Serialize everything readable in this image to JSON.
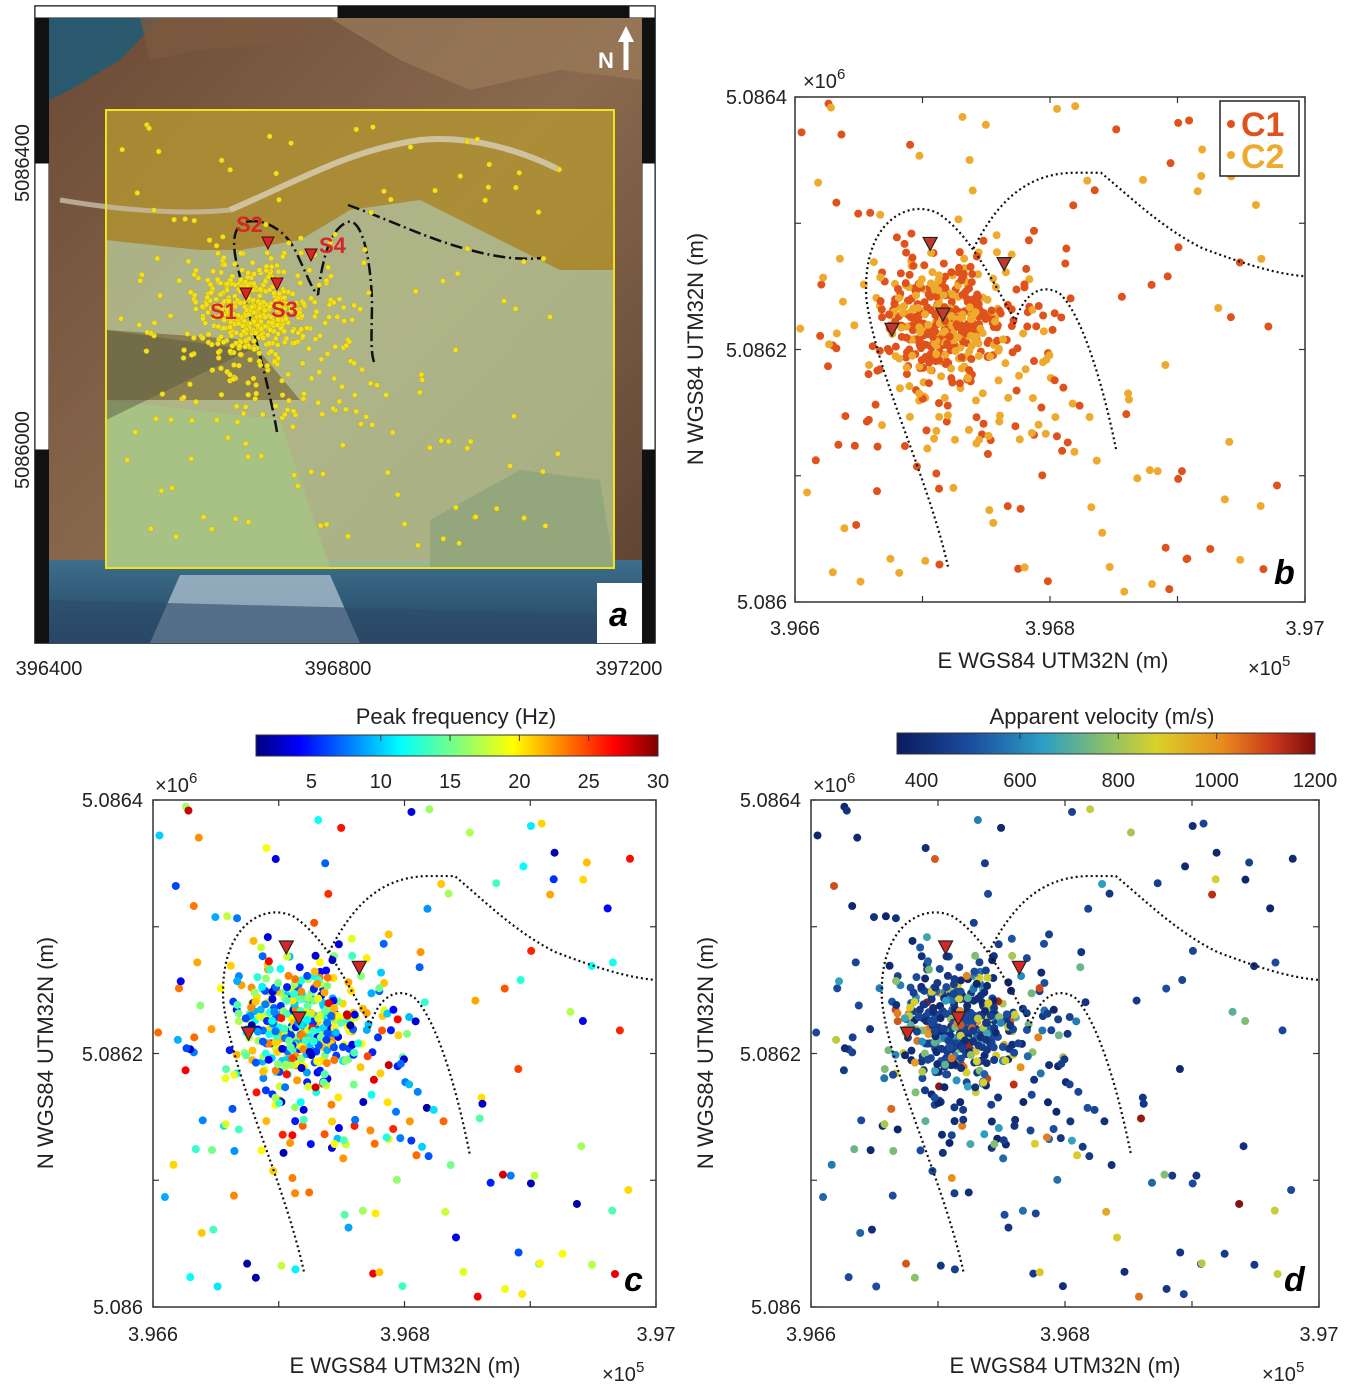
{
  "panel_a": {
    "letter": "a",
    "north_label": "N",
    "x_ticks": [
      "396400",
      "396800",
      "397200"
    ],
    "y_ticks": [
      "5086400",
      "5086000"
    ],
    "stations": [
      "S1",
      "S2",
      "S3",
      "S4"
    ],
    "colors": {
      "points": "#f5e11a",
      "stations": "#d62728",
      "study_box": "#f2e21b"
    }
  },
  "panel_b": {
    "letter": "b",
    "y_exponent": "×10",
    "y_exponent_power": "6",
    "x_exponent": "×10",
    "x_exponent_power": "5",
    "x_ticks": [
      "3.966",
      "3.968",
      "3.97"
    ],
    "y_ticks": [
      "5.0864",
      "5.0862",
      "5.086"
    ],
    "xlabel": "E WGS84 UTM32N (m)",
    "ylabel": "N WGS84 UTM32N (m)",
    "legend": [
      {
        "label": "C1",
        "color": "#e0521c"
      },
      {
        "label": "C2",
        "color": "#eeaa2c"
      }
    ]
  },
  "panel_c": {
    "letter": "c",
    "colorbar_title": "Peak frequency (Hz)",
    "colorbar_ticks": [
      "5",
      "10",
      "15",
      "20",
      "25",
      "30"
    ],
    "y_exponent": "×10",
    "y_exponent_power": "6",
    "x_exponent": "×10",
    "x_exponent_power": "5",
    "x_ticks": [
      "3.966",
      "3.968",
      "3.97"
    ],
    "y_ticks": [
      "5.0864",
      "5.0862",
      "5.086"
    ],
    "xlabel": "E WGS84 UTM32N (m)",
    "ylabel": "N WGS84 UTM32N (m)"
  },
  "panel_d": {
    "letter": "d",
    "colorbar_title": "Apparent velocity (m/s)",
    "colorbar_ticks": [
      "400",
      "600",
      "800",
      "1000",
      "1200"
    ],
    "y_exponent": "×10",
    "y_exponent_power": "6",
    "x_exponent": "×10",
    "x_exponent_power": "5",
    "x_ticks": [
      "3.966",
      "3.968",
      "3.97"
    ],
    "y_ticks": [
      "5.0864",
      "5.0862",
      "5.086"
    ],
    "xlabel": "E WGS84 UTM32N (m)",
    "ylabel": "N WGS84 UTM32N (m)"
  },
  "chart_data": [
    {
      "type": "scatter",
      "panel": "b",
      "xlim": [
        396600,
        396700
      ],
      "ylim": [
        5086000,
        5086400
      ],
      "x_exponent": 5,
      "y_exponent": 6,
      "series": [
        {
          "name": "C1",
          "color": "#e0521c"
        },
        {
          "name": "C2",
          "color": "#eeaa2c"
        }
      ],
      "stations": [
        {
          "name": "S1",
          "x": 396670,
          "y": 5086215
        },
        {
          "name": "S2",
          "x": 396703,
          "y": 5086282
        },
        {
          "name": "S3",
          "x": 396713,
          "y": 5086230
        },
        {
          "name": "S4",
          "x": 396762,
          "y": 5086268
        }
      ],
      "legend_position": "top-right"
    },
    {
      "type": "scatter",
      "panel": "c",
      "xlim": [
        396600,
        396700
      ],
      "ylim": [
        5086000,
        5086400
      ],
      "color_variable": "Peak frequency (Hz)",
      "clim": [
        1,
        30
      ],
      "colormap": "jet"
    },
    {
      "type": "scatter",
      "panel": "d",
      "xlim": [
        396600,
        396700
      ],
      "ylim": [
        5086000,
        5086400
      ],
      "color_variable": "Apparent velocity (m/s)",
      "clim": [
        350,
        1200
      ],
      "colormap": "parula-like"
    }
  ]
}
